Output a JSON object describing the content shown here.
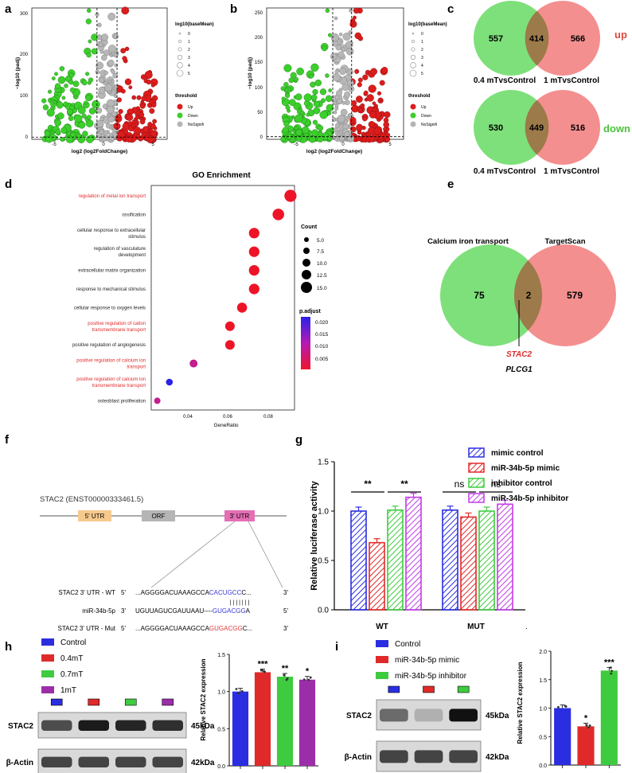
{
  "panels": {
    "a": "a",
    "b": "b",
    "c": "c",
    "d": "d",
    "e": "e",
    "f": "f",
    "g": "g",
    "h": "h",
    "i": "i"
  },
  "volcano_common": {
    "y_label": "−log10 (padj)",
    "x_label": "log2 (log2FoldChange)",
    "size_legend_title": "log10(baseMean)",
    "size_legend_values": [
      "0",
      "1",
      "2",
      "3",
      "4",
      "5"
    ],
    "threshold_title": "threshold",
    "threshold_items": [
      {
        "label": "Up",
        "color": "#dd1c1c"
      },
      {
        "label": "Down",
        "color": "#3ccf2c"
      },
      {
        "label": "NoSignifi",
        "color": "#b5b5b5"
      }
    ],
    "x_ticks": [
      "-5",
      "0",
      "5"
    ]
  },
  "chart_data": [
    {
      "id": "a",
      "type": "scatter",
      "title": "volcano plot a",
      "xlabel": "log2 (log2FoldChange)",
      "ylabel": "−log10 (padj)",
      "ylim": [
        0,
        310
      ],
      "y_ticks": [
        "0",
        "100",
        "200",
        "300"
      ],
      "x_range": [
        -7.5,
        6
      ],
      "thresholds": {
        "x": [
          -1,
          1
        ],
        "y": 1.3
      }
    },
    {
      "id": "b",
      "type": "scatter",
      "title": "volcano plot b",
      "xlabel": "log2 (log2FoldChange)",
      "ylabel": "−log10 (padj)",
      "ylim": [
        0,
        260
      ],
      "y_ticks": [
        "0",
        "50",
        "100",
        "150",
        "200",
        "250"
      ],
      "x_range": [
        -8,
        6.5
      ],
      "thresholds": {
        "x": [
          -1,
          1
        ],
        "y": 1.3
      }
    },
    {
      "id": "c-up",
      "type": "venn",
      "sets": [
        "0.4 mTvsControl",
        "1 mTvsControl"
      ],
      "only_a": "557",
      "both": "414",
      "only_b": "566",
      "tag": "up",
      "tag_color": "#e1483e"
    },
    {
      "id": "c-down",
      "type": "venn",
      "sets": [
        "0.4 mTvsControl",
        "1 mTvsControl"
      ],
      "only_a": "530",
      "both": "449",
      "only_b": "516",
      "tag": "down",
      "tag_color": "#4cc33c"
    },
    {
      "id": "d",
      "type": "scatter",
      "title": "GO Enrichment",
      "xlabel": "GeneRatio",
      "x_ticks": [
        "0.04",
        "0.06",
        "0.08"
      ],
      "xlim": [
        0.022,
        0.093
      ],
      "terms": [
        {
          "label": "regulation of metal ion transport",
          "ratio": 0.091,
          "count": 15.5,
          "padj": 0.001,
          "red": true
        },
        {
          "label": "ossification",
          "ratio": 0.085,
          "count": 14.5,
          "padj": 0.001,
          "red": false
        },
        {
          "label": "cellular response to extracellular stimulus",
          "ratio": 0.073,
          "count": 12.5,
          "padj": 0.001,
          "red": false
        },
        {
          "label": "regulation of vasculature development",
          "ratio": 0.073,
          "count": 12.5,
          "padj": 0.001,
          "red": false
        },
        {
          "label": "extracellular matrix organization",
          "ratio": 0.073,
          "count": 12.5,
          "padj": 0.001,
          "red": false
        },
        {
          "label": "response to mechanical stimulus",
          "ratio": 0.073,
          "count": 12.5,
          "padj": 0.001,
          "red": false
        },
        {
          "label": "cellular response to oxygen levels",
          "ratio": 0.067,
          "count": 11.5,
          "padj": 0.0015,
          "red": false
        },
        {
          "label": "positive regulation of cation transmembrane transport",
          "ratio": 0.061,
          "count": 10.5,
          "padj": 0.002,
          "red": true
        },
        {
          "label": "positive regulation of angiogenesis",
          "ratio": 0.061,
          "count": 10.5,
          "padj": 0.002,
          "red": false
        },
        {
          "label": "positive regulation of calcium ion transport",
          "ratio": 0.043,
          "count": 7.5,
          "padj": 0.011,
          "red": true
        },
        {
          "label": "positive regulation of calcium ion transmembrane transport",
          "ratio": 0.031,
          "count": 5.5,
          "padj": 0.022,
          "red": true
        },
        {
          "label": "osteoblast proliferation",
          "ratio": 0.025,
          "count": 4.5,
          "padj": 0.007,
          "red": false
        }
      ],
      "count_legend": {
        "title": "Count",
        "values": [
          "5.0",
          "7.5",
          "10.0",
          "12.5",
          "15.0"
        ]
      },
      "padj_legend": {
        "title": "p.adjust",
        "values": [
          "0.020",
          "0.015",
          "0.010",
          "0.005"
        ]
      }
    },
    {
      "id": "e",
      "type": "venn",
      "sets": [
        "Calcium iron transport",
        "TargetScan"
      ],
      "only_a": "75",
      "both": "2",
      "only_b": "579",
      "genes": [
        "STAC2",
        "PLCG1"
      ]
    },
    {
      "id": "g",
      "type": "bar",
      "ylabel": "Relative luciferase activity",
      "ylim": [
        0,
        1.5
      ],
      "y_ticks": [
        "0.0",
        "0.5",
        "1.0",
        "1.5"
      ],
      "categories": [
        "WT",
        "MUT"
      ],
      "series": [
        {
          "name": "mimic control",
          "color": "#2a2ee0",
          "values": [
            1.0,
            1.01
          ]
        },
        {
          "name": "miR-34b-5p mimic",
          "color": "#e02a2a",
          "values": [
            0.68,
            0.94
          ]
        },
        {
          "name": "inhibitor control",
          "color": "#3fcb3f",
          "values": [
            1.01,
            1.0
          ]
        },
        {
          "name": "miR-34b-5p inhibitor",
          "color": "#c23ce8",
          "values": [
            1.14,
            1.07
          ]
        }
      ],
      "significance": [
        {
          "label": "**",
          "group": "WT",
          "pair": "1-2"
        },
        {
          "label": "**",
          "group": "WT",
          "pair": "3-4"
        },
        {
          "label": "ns",
          "group": "MUT",
          "pair": "1-2"
        },
        {
          "label": "ns",
          "group": "MUT",
          "pair": "3-4"
        }
      ]
    },
    {
      "id": "h",
      "type": "bar",
      "ylabel": "Relative STAC2 expression",
      "ylim": [
        0,
        1.5
      ],
      "categories": [
        "Control",
        "0.4mT",
        "0.7mT",
        "1mT"
      ],
      "colors": [
        "#2a2ee0",
        "#e02a2a",
        "#3fcb3f",
        "#9b2ea8"
      ],
      "values": [
        1.0,
        1.26,
        1.2,
        1.16
      ],
      "significance": [
        "",
        "***",
        "**",
        "*"
      ]
    },
    {
      "id": "i",
      "type": "bar",
      "ylabel": "Relative STAC2 expression",
      "ylim": [
        0,
        2.0
      ],
      "y_ticks": [
        "0.0",
        "0.5",
        "1.0",
        "1.5",
        "2.0"
      ],
      "categories": [
        "Control",
        "miR-34b-5p mimic",
        "miR-34b-5p inhibitor"
      ],
      "colors": [
        "#2a2ee0",
        "#e02a2a",
        "#3fcb3f"
      ],
      "values": [
        1.0,
        0.68,
        1.66
      ],
      "significance": [
        "",
        "*",
        "***"
      ]
    }
  ],
  "f": {
    "gene": "STAC2  (ENST00000333461.5)",
    "regions": [
      "5' UTR",
      "ORF",
      "3' UTR"
    ],
    "rows": [
      {
        "label": "STAC2 3' UTR - WT",
        "end5": "5'",
        "seq_black": "...AGGGGACUAAAGCCA",
        "seq_color": "CACUGCC",
        "seq_tail": "C...",
        "end3": "3'",
        "color": "#3a3ad8"
      },
      {
        "label": "miR-34b-5p",
        "end5": "3'",
        "seq_black": "UGUUAGUCGAUUAAU----",
        "seq_color": "GUGACGG",
        "seq_tail": "A",
        "end3": "5'",
        "color": "#3a3ad8"
      },
      {
        "label": "STAC2 3' UTR - Mut",
        "end5": "5'",
        "seq_black": "...AGGGGACUAAAGCCA",
        "seq_color": "GUGACGG",
        "seq_tail": "C...",
        "end3": "3'",
        "color": "#e03a3a"
      }
    ],
    "pairing": "| | | | | | |"
  },
  "western": {
    "h": {
      "legend": [
        "Control",
        "0.4mT",
        "0.7mT",
        "1mT"
      ],
      "bands": [
        "STAC2",
        "β-Actin"
      ],
      "sizes": [
        "45kDa",
        "42kDa"
      ]
    },
    "i": {
      "legend": [
        "Control",
        "miR-34b-5p mimic",
        "miR-34b-5p inhibitor"
      ],
      "bands": [
        "STAC2",
        "β-Actin"
      ],
      "sizes": [
        "45kDa",
        "42kDa"
      ]
    }
  },
  "decor_dot": "."
}
